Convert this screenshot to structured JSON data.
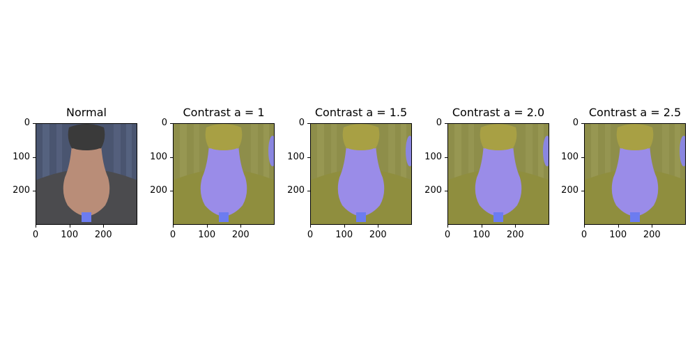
{
  "panels": [
    {
      "title": "Normal",
      "variant": "normal"
    },
    {
      "title": "Contrast a = 1",
      "variant": "contrast"
    },
    {
      "title": "Contrast a = 1.5",
      "variant": "contrast"
    },
    {
      "title": "Contrast a = 2.0",
      "variant": "contrast"
    },
    {
      "title": "Contrast a = 2.5",
      "variant": "contrast"
    }
  ],
  "axis": {
    "y_ticks": [
      "0",
      "100",
      "200"
    ],
    "x_ticks": [
      "0",
      "100",
      "200"
    ]
  },
  "colors": {
    "normal_background": "#4a5570",
    "normal_shirt": "#4b4b4e",
    "normal_skin": "#b98d78",
    "contrast_background": "#8e8e4a",
    "contrast_shirt": "#8f8e3e",
    "contrast_skin": "#9a8ce8",
    "tag": "#6c7cf0"
  }
}
